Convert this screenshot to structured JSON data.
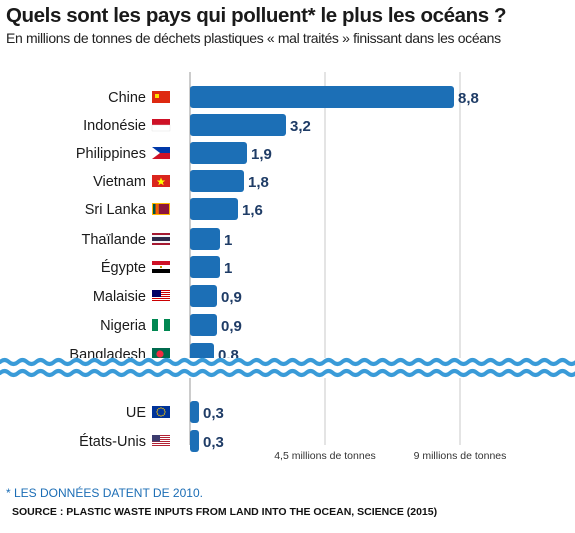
{
  "header": {
    "title": "Quels sont les pays qui polluent* le plus les océans ?",
    "subtitle": "En millions de tonnes de déchets plastiques « mal traités » finissant dans les océans"
  },
  "chart_data": {
    "type": "bar",
    "orientation": "horizontal",
    "categories": [
      "Chine",
      "Indonésie",
      "Philippines",
      "Vietnam",
      "Sri Lanka",
      "Thaïlande",
      "Égypte",
      "Malaisie",
      "Nigeria",
      "Bangladesh",
      "UE",
      "États-Unis"
    ],
    "values": [
      8.8,
      3.2,
      1.9,
      1.8,
      1.6,
      1,
      1,
      0.9,
      0.9,
      0.8,
      0.3,
      0.3
    ],
    "value_labels": [
      "8,8",
      "3,2",
      "1,9",
      "1,8",
      "1,6",
      "1",
      "1",
      "0,9",
      "0,9",
      "0,8",
      "0,3",
      "0,3"
    ],
    "flags": [
      "china-flag-icon",
      "indonesia-flag-icon",
      "philippines-flag-icon",
      "vietnam-flag-icon",
      "sri-lanka-flag-icon",
      "thailand-flag-icon",
      "egypt-flag-icon",
      "malaysia-flag-icon",
      "nigeria-flag-icon",
      "bangladesh-flag-icon",
      "eu-flag-icon",
      "usa-flag-icon"
    ],
    "reference_lines": [
      {
        "value": 4.5,
        "label": "4,5 millions de tonnes"
      },
      {
        "value": 9,
        "label": "9 millions de tonnes"
      }
    ],
    "xlim": [
      0,
      9
    ],
    "break_after_category": "Bangladesh",
    "grid": false,
    "bar_color": "#1c6fb6",
    "wave_color": "#3a9bd8"
  },
  "footer": {
    "footnote": "* LES DONNÉES DATENT DE 2010.",
    "source": "SOURCE : PLASTIC WASTE INPUTS FROM LAND INTO THE OCEAN, SCIENCE (2015)"
  }
}
